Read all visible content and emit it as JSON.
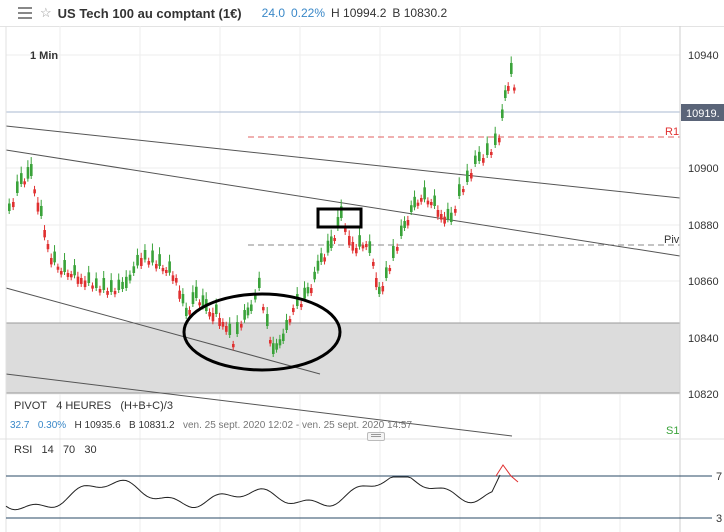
{
  "header": {
    "title": "US Tech 100 au comptant (1€)",
    "change": "24.0",
    "change_pct": "0.22%",
    "high": "H 10994.2",
    "low": "B 10830.2"
  },
  "chart": {
    "timeframe": "1 Min",
    "current_price": "10919.",
    "y_ticks": [
      "10940",
      "10920",
      "10900",
      "10880",
      "10860",
      "10840",
      "10820"
    ],
    "r1_label": "R1",
    "pivot_label": "Piv",
    "s1_label": "S1"
  },
  "pivot": {
    "name": "PIVOT",
    "period": "4 HEURES",
    "formula": "(H+B+C)/3",
    "value": "32.7",
    "pct": "0.30%",
    "high": "H 10935.6",
    "low": "B 10831.2",
    "range": "ven. 25 sept. 2020 12:02 - ven. 25 sept. 2020 14:57"
  },
  "rsi": {
    "name": "RSI",
    "p1": "14",
    "p2": "70",
    "p3": "30",
    "level_high": "7",
    "level_low": "3"
  },
  "colors": {
    "up": "#3aa33a",
    "down": "#e03030",
    "accent": "#3a88c8",
    "zone": "#dcdcdc"
  }
}
